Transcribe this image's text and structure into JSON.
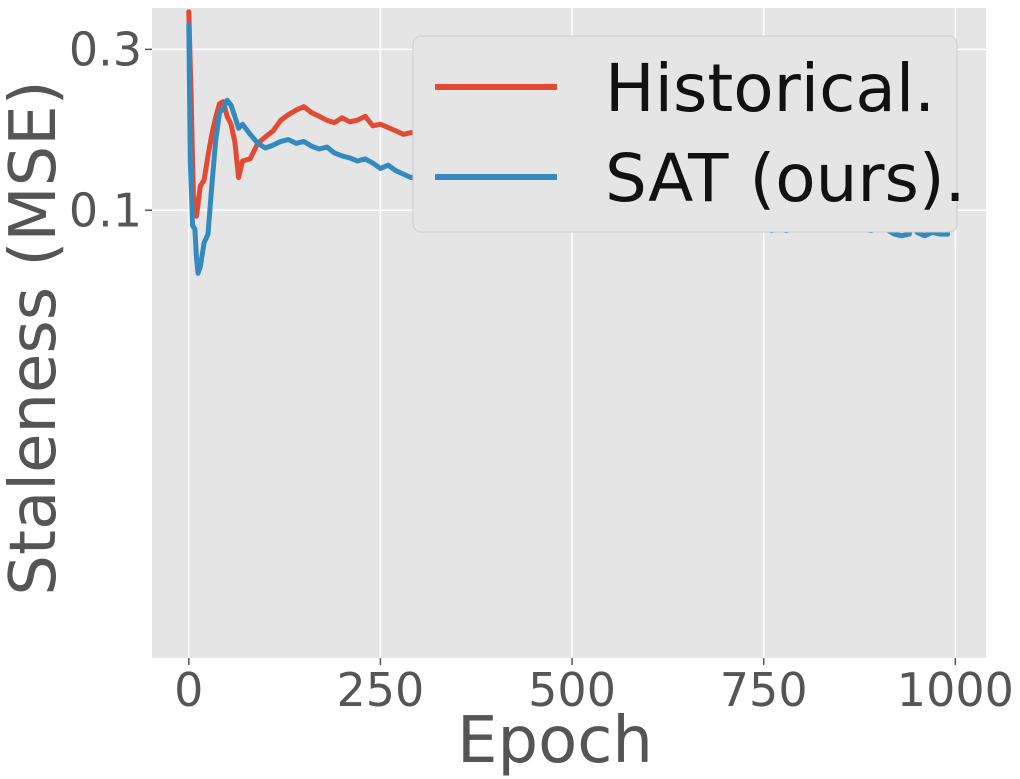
{
  "chart_data": {
    "type": "line",
    "title": "",
    "xlabel": "Epoch",
    "ylabel": "Staleness (MSE)",
    "xlim": [
      -48,
      1040
    ],
    "ylim": [
      0.0047,
      0.398
    ],
    "xticks": [
      0,
      250,
      500,
      750,
      1000
    ],
    "xtick_labels": [
      "0",
      "250",
      "500",
      "750",
      "1000"
    ],
    "yticks": [
      0.1,
      0.3
    ],
    "ytick_labels": [
      "0.1",
      "0.3"
    ],
    "grid": true,
    "legend_position": "top-right",
    "colors": {
      "plot_background": "#e5e5e5",
      "grid": "#ffffff",
      "text": "#555555"
    },
    "series": [
      {
        "name": "Historical.",
        "color": "#e24a33",
        "x": [
          0,
          3,
          6,
          10,
          15,
          20,
          25,
          30,
          35,
          40,
          45,
          50,
          55,
          60,
          65,
          70,
          80,
          90,
          100,
          110,
          120,
          130,
          140,
          150,
          160,
          170,
          180,
          190,
          200,
          210,
          220,
          230,
          240,
          250,
          260,
          270,
          280,
          290,
          300,
          310,
          320,
          330,
          340,
          350,
          360,
          370,
          380,
          390,
          400,
          410,
          420,
          430,
          440,
          450,
          460,
          470,
          480,
          490,
          500,
          510,
          520,
          530,
          540,
          550,
          556,
          560,
          570,
          580,
          590,
          600,
          610,
          620,
          630,
          640,
          650,
          660,
          670,
          680,
          690,
          700,
          710,
          720,
          730,
          740,
          750,
          760,
          770,
          780,
          790,
          798,
          805,
          810,
          820,
          828,
          835,
          840,
          845,
          850,
          855,
          860,
          870,
          880,
          890,
          900,
          910,
          920,
          930,
          940,
          945,
          950,
          960,
          970,
          980,
          990
        ],
        "values": [
          0.388,
          0.22,
          0.11,
          0.096,
          0.118,
          0.123,
          0.145,
          0.168,
          0.188,
          0.207,
          0.21,
          0.19,
          0.18,
          0.16,
          0.125,
          0.14,
          0.142,
          0.158,
          0.165,
          0.172,
          0.185,
          0.192,
          0.198,
          0.203,
          0.195,
          0.19,
          0.185,
          0.182,
          0.188,
          0.183,
          0.185,
          0.19,
          0.178,
          0.18,
          0.176,
          0.172,
          0.168,
          0.17,
          0.168,
          0.163,
          0.165,
          0.16,
          0.158,
          0.153,
          0.155,
          0.148,
          0.147,
          0.146,
          0.148,
          0.143,
          0.14,
          0.138,
          0.142,
          0.135,
          0.136,
          0.137,
          0.131,
          0.128,
          0.133,
          0.134,
          0.128,
          0.126,
          0.127,
          0.13,
          0.14,
          0.118,
          0.125,
          0.12,
          0.118,
          0.122,
          0.121,
          0.118,
          0.12,
          0.118,
          0.12,
          0.122,
          0.115,
          0.114,
          0.112,
          0.115,
          0.113,
          0.112,
          0.114,
          0.11,
          0.108,
          0.107,
          0.11,
          0.108,
          0.113,
          0.142,
          0.115,
          0.108,
          0.11,
          0.14,
          0.128,
          0.165,
          0.125,
          0.108,
          0.125,
          0.102,
          0.112,
          0.105,
          0.1,
          0.106,
          0.103,
          0.102,
          0.104,
          0.098,
          0.115,
          0.1,
          0.104,
          0.095,
          0.1,
          0.103
        ]
      },
      {
        "name": "SAT (ours).",
        "color": "#348abd",
        "x": [
          0,
          2,
          5,
          8,
          10,
          12,
          15,
          20,
          25,
          30,
          35,
          40,
          45,
          50,
          55,
          60,
          65,
          70,
          80,
          90,
          100,
          110,
          120,
          130,
          140,
          150,
          160,
          170,
          180,
          190,
          200,
          210,
          220,
          230,
          240,
          250,
          260,
          270,
          280,
          290,
          300,
          310,
          320,
          330,
          340,
          350,
          360,
          370,
          380,
          390,
          400,
          410,
          420,
          430,
          440,
          450,
          460,
          470,
          480,
          490,
          500,
          510,
          520,
          530,
          540,
          550,
          555,
          560,
          570,
          580,
          590,
          600,
          610,
          620,
          630,
          640,
          650,
          655,
          660,
          670,
          680,
          690,
          700,
          710,
          720,
          730,
          740,
          750,
          760,
          770,
          780,
          790,
          800,
          810,
          820,
          825,
          830,
          835,
          840,
          850,
          860,
          870,
          880,
          890,
          900,
          910,
          920,
          930,
          940,
          945,
          950,
          960,
          970,
          980,
          990
        ],
        "values": [
          0.355,
          0.14,
          0.09,
          0.088,
          0.072,
          0.065,
          0.068,
          0.08,
          0.085,
          0.118,
          0.16,
          0.195,
          0.2,
          0.212,
          0.205,
          0.19,
          0.175,
          0.18,
          0.168,
          0.158,
          0.153,
          0.156,
          0.16,
          0.162,
          0.158,
          0.16,
          0.155,
          0.152,
          0.154,
          0.148,
          0.145,
          0.143,
          0.14,
          0.142,
          0.138,
          0.133,
          0.136,
          0.131,
          0.128,
          0.125,
          0.127,
          0.122,
          0.12,
          0.118,
          0.117,
          0.115,
          0.113,
          0.116,
          0.113,
          0.112,
          0.111,
          0.108,
          0.109,
          0.107,
          0.11,
          0.108,
          0.107,
          0.105,
          0.104,
          0.103,
          0.104,
          0.101,
          0.1,
          0.098,
          0.097,
          0.1,
          0.118,
          0.105,
          0.103,
          0.106,
          0.104,
          0.099,
          0.097,
          0.094,
          0.096,
          0.095,
          0.1,
          0.108,
          0.098,
          0.113,
          0.097,
          0.095,
          0.094,
          0.092,
          0.093,
          0.094,
          0.092,
          0.09,
          0.087,
          0.088,
          0.087,
          0.09,
          0.09,
          0.09,
          0.092,
          0.098,
          0.13,
          0.147,
          0.095,
          0.09,
          0.1,
          0.092,
          0.088,
          0.087,
          0.089,
          0.088,
          0.085,
          0.084,
          0.085,
          0.093,
          0.086,
          0.084,
          0.086,
          0.085,
          0.085
        ]
      }
    ]
  }
}
